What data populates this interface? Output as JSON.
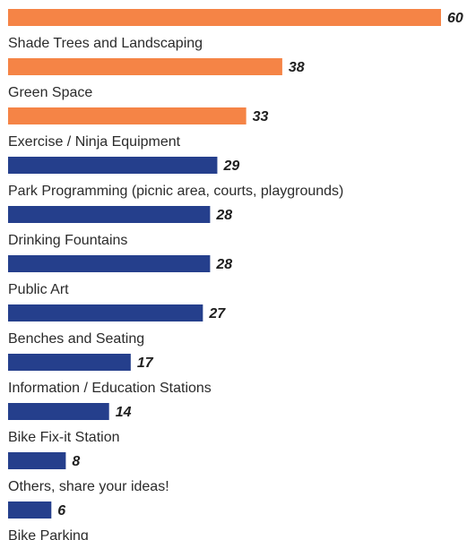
{
  "chart_data": {
    "type": "bar",
    "orientation": "horizontal",
    "title": "",
    "xlabel": "",
    "ylabel": "",
    "xlim": [
      0,
      60
    ],
    "grid": false,
    "legend": "none",
    "colors": {
      "highlight": "#F58446",
      "default": "#253F8C",
      "label_text": "#2B2B2B",
      "value_text": "#1F1F1F"
    },
    "highlight_top_n": 3,
    "categories": [
      "Shade Trees and Landscaping",
      "Green Space",
      "Exercise / Ninja Equipment",
      "Park Programming (picnic area, courts, playgrounds)",
      "Drinking Fountains",
      "Public Art",
      "Benches and Seating",
      "Information / Education Stations",
      "Bike Fix-it Station",
      "Others, share your ideas!",
      "Bike Parking"
    ],
    "values": [
      60,
      38,
      33,
      29,
      28,
      28,
      27,
      17,
      14,
      8,
      6
    ]
  }
}
